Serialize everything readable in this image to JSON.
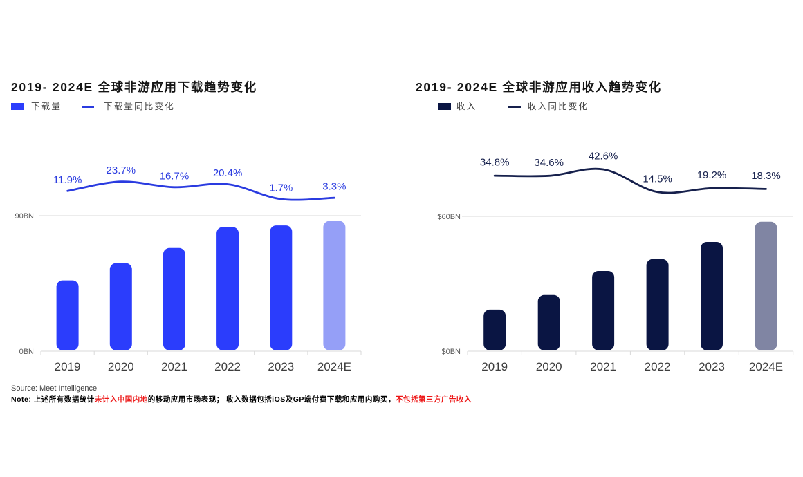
{
  "footer": {
    "source": "Source: Meet Intelligence",
    "note_parts": [
      {
        "text": "Note: 上述所有数据统计",
        "red": false
      },
      {
        "text": "未计入中国内地",
        "red": true
      },
      {
        "text": "的移动应用市场表现； 收入数据包括iOS及GP端付费下载和应用内购买，",
        "red": false
      },
      {
        "text": "不包括第三方广告收入",
        "red": true
      }
    ],
    "red_color": "#ed1515"
  },
  "chart_data": [
    {
      "type": "bar+line",
      "title": "2019- 2024E 全球非游应用下载趋势变化",
      "legend": [
        {
          "label": "下载量",
          "type": "bar",
          "color": "#2b3dfc"
        },
        {
          "label": "下载量同比变化",
          "type": "line",
          "color": "#2a3be0"
        }
      ],
      "categories": [
        "2019",
        "2020",
        "2021",
        "2022",
        "2023",
        "2024E"
      ],
      "bars": {
        "name": "下载量",
        "unit": "BN",
        "values": [
          47,
          58.5,
          68.5,
          82.5,
          83.5,
          86.5
        ],
        "colors": [
          "#2b3dfc",
          "#2b3dfc",
          "#2b3dfc",
          "#2b3dfc",
          "#2b3dfc",
          "#959ff7"
        ]
      },
      "line": {
        "name": "下载量同比变化",
        "values_pct": [
          11.9,
          23.7,
          16.7,
          20.4,
          1.7,
          3.3
        ],
        "labels": [
          "11.9%",
          "23.7%",
          "16.7%",
          "20.4%",
          "1.7%",
          "3.3%"
        ],
        "color": "#2a3be0"
      },
      "y_axis": {
        "top_label": "90BN",
        "bottom_label": "0BN",
        "max": 90
      },
      "grid": "single-top-line",
      "legend_position": "top-left"
    },
    {
      "type": "bar+line",
      "title": "2019- 2024E 全球非游应用收入趋势变化",
      "legend": [
        {
          "label": "收入",
          "type": "bar",
          "color": "#0a1543"
        },
        {
          "label": "收入同比变化",
          "type": "line",
          "color": "#16204c"
        }
      ],
      "categories": [
        "2019",
        "2020",
        "2021",
        "2022",
        "2023",
        "2024E"
      ],
      "bars": {
        "name": "收入",
        "unit": "$BN",
        "values": [
          18.5,
          25,
          35.7,
          41,
          48.6,
          57.6
        ],
        "colors": [
          "#0a1543",
          "#0a1543",
          "#0a1543",
          "#0a1543",
          "#0a1543",
          "#8085a3"
        ]
      },
      "line": {
        "name": "收入同比变化",
        "values_pct": [
          34.8,
          34.6,
          42.6,
          14.5,
          19.2,
          18.3
        ],
        "labels": [
          "34.8%",
          "34.6%",
          "42.6%",
          "14.5%",
          "19.2%",
          "18.3%"
        ],
        "color": "#16204c"
      },
      "y_axis": {
        "top_label": "$60BN",
        "bottom_label": "$0BN",
        "max": 60
      },
      "grid": "single-top-line",
      "legend_position": "top-left"
    }
  ]
}
